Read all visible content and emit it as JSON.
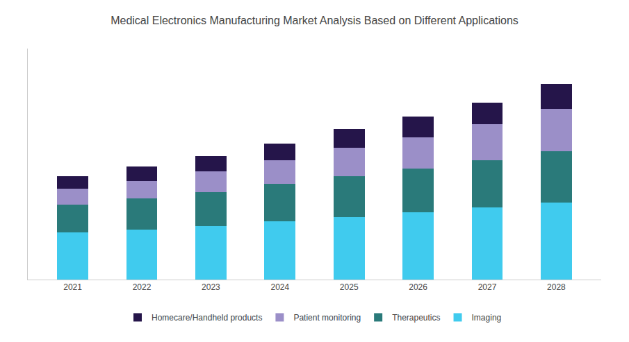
{
  "chart_data": {
    "type": "bar",
    "title": "Medical Electronics Manufacturing Market Analysis Based on Different Applications",
    "categories": [
      "2021",
      "2022",
      "2023",
      "2024",
      "2025",
      "2026",
      "2027",
      "2028"
    ],
    "series": [
      {
        "name": "Imaging",
        "color": "#40CBEE",
        "values": [
          30,
          32,
          34,
          37,
          40,
          43,
          46,
          49
        ]
      },
      {
        "name": "Therapeutics",
        "color": "#2A7A7A",
        "values": [
          18,
          20,
          22,
          24,
          26,
          28,
          30,
          33
        ]
      },
      {
        "name": "Patient monitoring",
        "color": "#9B8FC8",
        "values": [
          10,
          11,
          13,
          15,
          18,
          20,
          23,
          27
        ]
      },
      {
        "name": "Homecare/Handheld products",
        "color": "#25154A",
        "values": [
          8,
          9,
          10,
          11,
          12,
          13,
          14,
          16
        ]
      }
    ],
    "stacked": true,
    "ylim": [
      0,
      147.5
    ],
    "grid": false,
    "legend": "bottom",
    "tick_labels": "x"
  }
}
